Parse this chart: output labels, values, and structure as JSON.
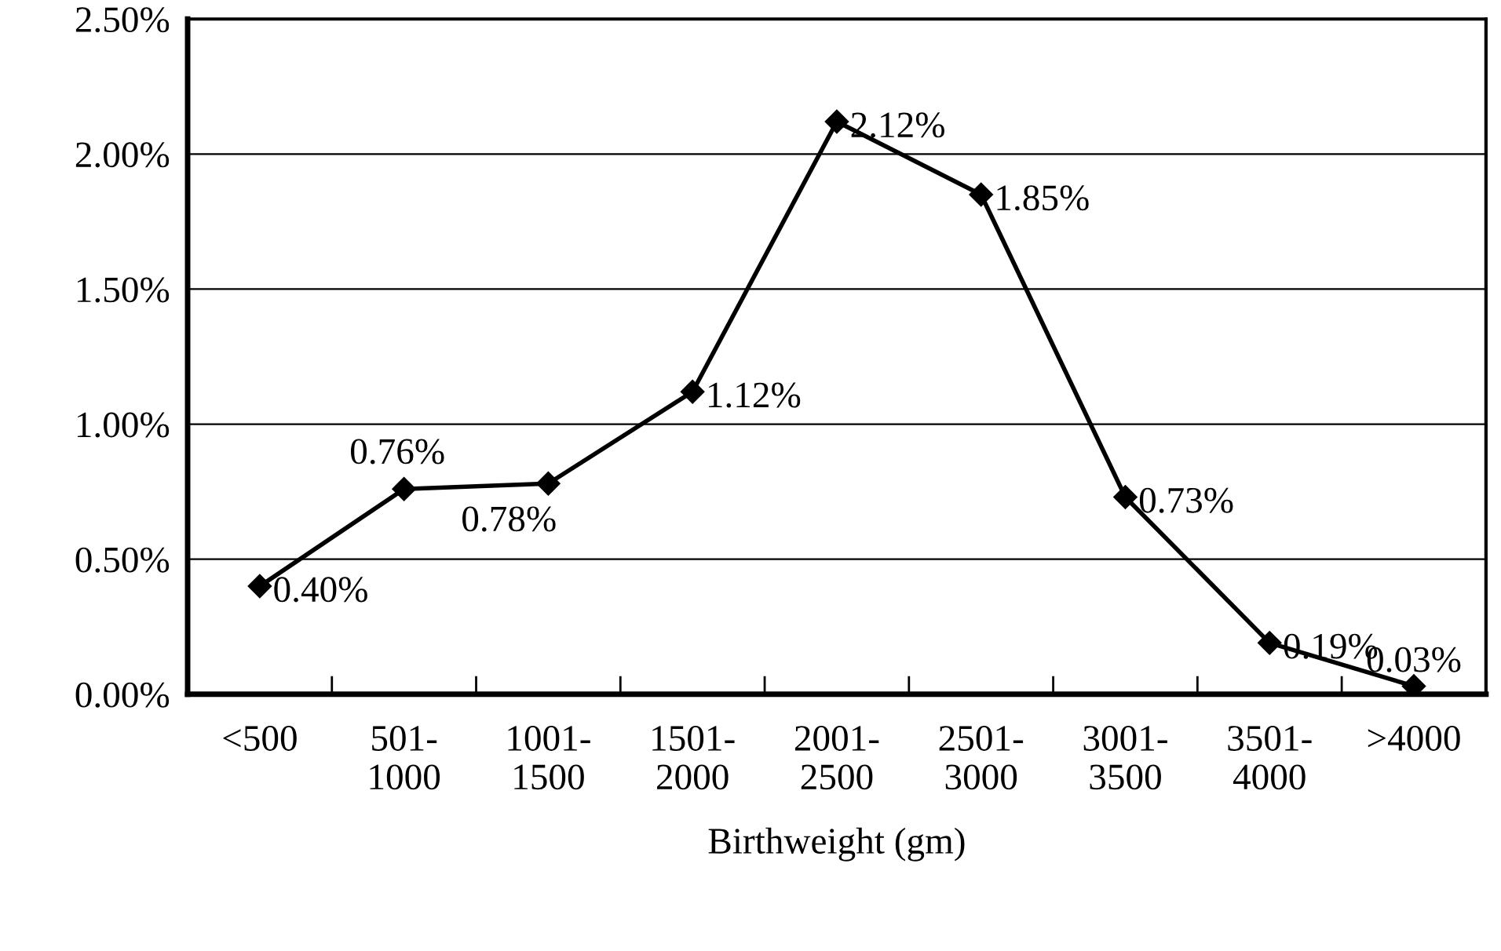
{
  "chart_data": {
    "type": "line",
    "xlabel": "Birthweight (gm)",
    "categories": [
      "<500",
      "501-\n1000",
      "1001-\n1500",
      "1501-\n2000",
      "2001-\n2500",
      "2501-\n3000",
      "3001-\n3500",
      "3501-\n4000",
      ">4000"
    ],
    "series": [
      {
        "color": "#000000",
        "values": [
          0.4,
          0.76,
          0.78,
          1.12,
          2.12,
          1.85,
          0.73,
          0.19,
          0.03
        ],
        "value_labels": [
          "0.40%",
          "0.76%",
          "0.78%",
          "1.12%",
          "2.12%",
          "1.85%",
          "0.73%",
          "0.19%",
          "0.03%"
        ]
      }
    ],
    "ylim": [
      0,
      2.5
    ],
    "yticks": [
      {
        "value": 0,
        "label": "0.00%"
      },
      {
        "value": 0.5,
        "label": "0.50%"
      },
      {
        "value": 1.0,
        "label": "1.00%"
      },
      {
        "value": 1.5,
        "label": "1.50%"
      },
      {
        "value": 2.0,
        "label": "2.00%"
      },
      {
        "value": 2.5,
        "label": "2.50%"
      }
    ],
    "grid": "y",
    "marker": "diamond",
    "line_style": "solid",
    "legend": false
  }
}
